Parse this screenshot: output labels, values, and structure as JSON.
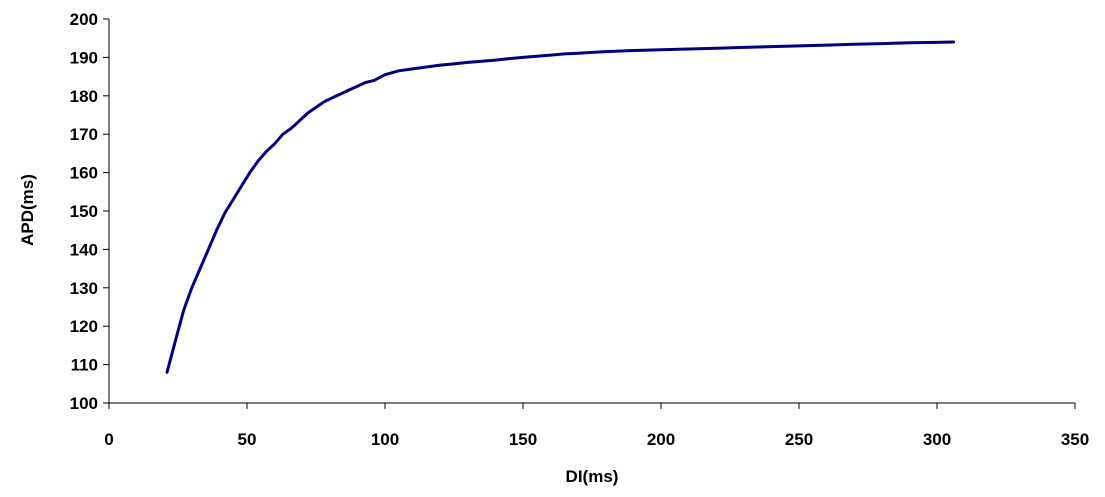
{
  "chart_data": {
    "type": "line",
    "xlabel": "DI(ms)",
    "ylabel": "APD(ms)",
    "xlim": [
      0,
      350
    ],
    "ylim": [
      100,
      200
    ],
    "xticks": [
      0,
      50,
      100,
      150,
      200,
      250,
      300,
      350
    ],
    "yticks": [
      100,
      110,
      120,
      130,
      140,
      150,
      160,
      170,
      180,
      190,
      200
    ],
    "grid": false,
    "legend": "none",
    "line_color": "#000080",
    "series": [
      {
        "x": [
          21,
          24,
          27,
          30,
          33,
          36,
          39,
          42,
          45,
          48,
          51,
          54,
          57,
          60,
          63,
          66,
          69,
          72,
          75,
          78,
          81,
          84,
          87,
          90,
          93,
          96,
          100,
          105,
          110,
          115,
          120,
          125,
          130,
          135,
          140,
          145,
          150,
          155,
          160,
          165,
          170,
          175,
          180,
          190,
          200,
          210,
          220,
          230,
          240,
          250,
          260,
          270,
          280,
          290,
          300,
          306
        ],
        "y": [
          108,
          116,
          124,
          130,
          135,
          140,
          145,
          149.5,
          153,
          156.5,
          160,
          163,
          165.5,
          167.5,
          170,
          171.5,
          173.5,
          175.5,
          177,
          178.5,
          179.5,
          180.5,
          181.5,
          182.5,
          183.5,
          184,
          185.5,
          186.5,
          187,
          187.5,
          188,
          188.3,
          188.7,
          189,
          189.3,
          189.7,
          190,
          190.3,
          190.6,
          190.9,
          191.1,
          191.3,
          191.5,
          191.8,
          192,
          192.2,
          192.4,
          192.6,
          192.8,
          193,
          193.2,
          193.4,
          193.6,
          193.8,
          193.9,
          194
        ]
      }
    ]
  }
}
